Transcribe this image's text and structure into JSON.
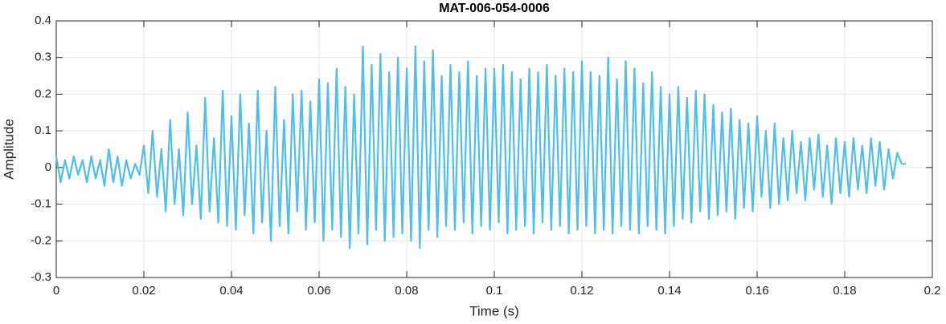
{
  "chart_data": {
    "type": "line",
    "title": "MAT-006-054-0006",
    "xlabel": "Time (s)",
    "ylabel": "Amplitude",
    "xlim": [
      0,
      0.2
    ],
    "xticks": [
      0,
      0.02,
      0.04,
      0.06,
      0.08,
      0.1,
      0.12,
      0.14,
      0.16,
      0.18,
      0.2
    ],
    "ylim": [
      -0.3,
      0.4
    ],
    "yticks": [
      -0.3,
      -0.2,
      -0.1,
      0,
      0.1,
      0.2,
      0.3,
      0.4
    ],
    "grid": true,
    "series": [
      {
        "name": "Amplitude",
        "color": "#4dbeee",
        "x": [
          0,
          0.001,
          0.002,
          0.003,
          0.004,
          0.005,
          0.006,
          0.007,
          0.008,
          0.009,
          0.01,
          0.011,
          0.012,
          0.013,
          0.014,
          0.015,
          0.016,
          0.017,
          0.018,
          0.019,
          0.02,
          0.021,
          0.022,
          0.023,
          0.024,
          0.025,
          0.026,
          0.027,
          0.028,
          0.029,
          0.03,
          0.031,
          0.032,
          0.033,
          0.034,
          0.035,
          0.036,
          0.037,
          0.038,
          0.039,
          0.04,
          0.041,
          0.042,
          0.043,
          0.044,
          0.045,
          0.046,
          0.047,
          0.048,
          0.049,
          0.05,
          0.051,
          0.052,
          0.053,
          0.054,
          0.055,
          0.056,
          0.057,
          0.058,
          0.059,
          0.06,
          0.061,
          0.062,
          0.063,
          0.064,
          0.065,
          0.066,
          0.067,
          0.068,
          0.069,
          0.07,
          0.071,
          0.072,
          0.073,
          0.074,
          0.075,
          0.076,
          0.077,
          0.078,
          0.079,
          0.08,
          0.081,
          0.082,
          0.083,
          0.084,
          0.085,
          0.086,
          0.087,
          0.088,
          0.089,
          0.09,
          0.091,
          0.092,
          0.093,
          0.094,
          0.095,
          0.096,
          0.097,
          0.098,
          0.099,
          0.1,
          0.101,
          0.102,
          0.103,
          0.104,
          0.105,
          0.106,
          0.107,
          0.108,
          0.109,
          0.11,
          0.111,
          0.112,
          0.113,
          0.114,
          0.115,
          0.116,
          0.117,
          0.118,
          0.119,
          0.12,
          0.121,
          0.122,
          0.123,
          0.124,
          0.125,
          0.126,
          0.127,
          0.128,
          0.129,
          0.13,
          0.131,
          0.132,
          0.133,
          0.134,
          0.135,
          0.136,
          0.137,
          0.138,
          0.139,
          0.14,
          0.141,
          0.142,
          0.143,
          0.144,
          0.145,
          0.146,
          0.147,
          0.148,
          0.149,
          0.15,
          0.151,
          0.152,
          0.153,
          0.154,
          0.155,
          0.156,
          0.157,
          0.158,
          0.159,
          0.16,
          0.161,
          0.162,
          0.163,
          0.164,
          0.165,
          0.166,
          0.167,
          0.168,
          0.169,
          0.17,
          0.171,
          0.172,
          0.173,
          0.174,
          0.175,
          0.176,
          0.177,
          0.178,
          0.179,
          0.18,
          0.181,
          0.182,
          0.183,
          0.184,
          0.185,
          0.186,
          0.187,
          0.188,
          0.189,
          0.19,
          0.191,
          0.192,
          0.193,
          0.194
        ],
        "values": [
          0.03,
          -0.04,
          0.02,
          -0.03,
          0.03,
          -0.02,
          0.02,
          -0.04,
          0.03,
          -0.03,
          0.02,
          -0.05,
          0.05,
          -0.04,
          0.03,
          -0.05,
          0.02,
          -0.03,
          0.01,
          -0.02,
          0.06,
          -0.07,
          0.1,
          -0.08,
          0.05,
          -0.12,
          0.13,
          -0.1,
          0.05,
          -0.13,
          0.15,
          -0.1,
          0.06,
          -0.14,
          0.19,
          -0.12,
          0.08,
          -0.15,
          0.21,
          -0.16,
          0.14,
          -0.17,
          0.2,
          -0.13,
          0.12,
          -0.18,
          0.21,
          -0.15,
          0.1,
          -0.2,
          0.22,
          -0.16,
          0.13,
          -0.18,
          0.2,
          -0.12,
          0.21,
          -0.17,
          0.18,
          -0.15,
          0.24,
          -0.2,
          0.23,
          -0.17,
          0.27,
          -0.19,
          0.22,
          -0.22,
          0.2,
          -0.18,
          0.33,
          -0.21,
          0.28,
          -0.17,
          0.31,
          -0.2,
          0.26,
          -0.19,
          0.3,
          -0.18,
          0.27,
          -0.2,
          0.33,
          -0.22,
          0.29,
          -0.17,
          0.32,
          -0.19,
          0.25,
          -0.16,
          0.28,
          -0.17,
          0.26,
          -0.15,
          0.29,
          -0.18,
          0.25,
          -0.16,
          0.27,
          -0.17,
          0.27,
          -0.15,
          0.28,
          -0.18,
          0.26,
          -0.17,
          0.24,
          -0.16,
          0.27,
          -0.18,
          0.26,
          -0.15,
          0.28,
          -0.17,
          0.25,
          -0.16,
          0.27,
          -0.18,
          0.26,
          -0.17,
          0.29,
          -0.16,
          0.26,
          -0.18,
          0.25,
          -0.17,
          0.3,
          -0.18,
          0.24,
          -0.16,
          0.29,
          -0.17,
          0.27,
          -0.18,
          0.23,
          -0.16,
          0.26,
          -0.17,
          0.22,
          -0.18,
          0.2,
          -0.16,
          0.22,
          -0.14,
          0.19,
          -0.15,
          0.21,
          -0.12,
          0.2,
          -0.14,
          0.17,
          -0.13,
          0.15,
          -0.12,
          0.16,
          -0.14,
          0.13,
          -0.11,
          0.12,
          -0.12,
          0.14,
          -0.08,
          0.1,
          -0.11,
          0.12,
          -0.1,
          0.08,
          -0.09,
          0.1,
          -0.07,
          0.07,
          -0.09,
          0.08,
          -0.06,
          0.09,
          -0.08,
          0.06,
          -0.1,
          0.08,
          -0.07,
          0.07,
          -0.08,
          0.08,
          -0.06,
          0.06,
          -0.07,
          0.08,
          -0.05,
          0.07,
          -0.06,
          0.05,
          -0.03,
          0.04,
          0.01,
          0.01
        ]
      }
    ]
  }
}
